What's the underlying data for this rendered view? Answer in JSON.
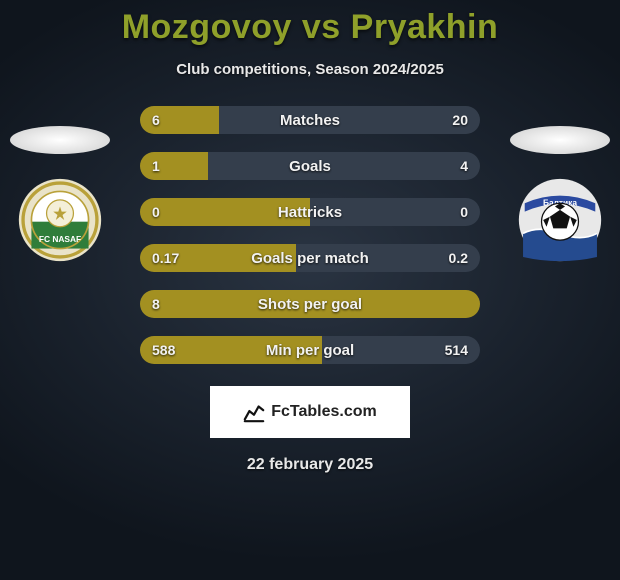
{
  "title_left": "Mozgovoy",
  "title_sep": "vs",
  "title_right": "Pryakhin",
  "title_color": "#8fa02a",
  "subtitle": "Club competitions, Season 2024/2025",
  "date": "22 february 2025",
  "credit": "FcTables.com",
  "colors": {
    "bar_left": "#a39021",
    "bar_right": "#343e4c",
    "text": "#f2f2f2"
  },
  "logos": {
    "left": {
      "name": "fc-nasaf-logo",
      "bg": "#e9e3c9",
      "ring": "#b9a13a",
      "inner_top": "#ffffff",
      "inner_bottom": "#2f7d3a",
      "text": "FC NASAF",
      "text_color": "#2f7d3a"
    },
    "right": {
      "name": "baltika-logo",
      "bg": "#e8e8e8",
      "banner": "#2b4aa0",
      "banner_text": "Балтика",
      "ball": "#ffffff",
      "ball_panel": "#111111",
      "waves": "#254b8f"
    }
  },
  "rows": [
    {
      "label": "Matches",
      "left": "6",
      "right": "20",
      "left_pct": 23.1
    },
    {
      "label": "Goals",
      "left": "1",
      "right": "4",
      "left_pct": 20.0
    },
    {
      "label": "Hattricks",
      "left": "0",
      "right": "0",
      "left_pct": 50.0
    },
    {
      "label": "Goals per match",
      "left": "0.17",
      "right": "0.2",
      "left_pct": 45.9
    },
    {
      "label": "Shots per goal",
      "left": "8",
      "right": "",
      "left_pct": 100.0
    },
    {
      "label": "Min per goal",
      "left": "588",
      "right": "514",
      "left_pct": 53.4
    }
  ]
}
